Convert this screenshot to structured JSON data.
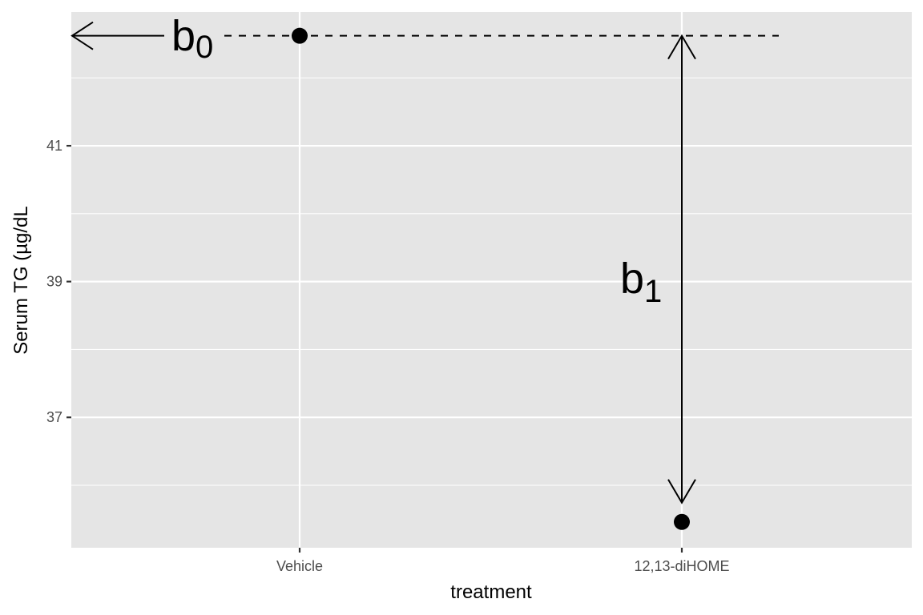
{
  "chart_data": {
    "type": "scatter",
    "xlabel": "treatment",
    "ylabel": "Serum TG (µg/dL",
    "categories": [
      "Vehicle",
      "12,13-diHOME"
    ],
    "values": [
      42.62,
      35.46
    ],
    "y_ticks": [
      37,
      39,
      41
    ],
    "ylim": [
      35.08,
      42.97
    ],
    "grid": true,
    "annotations": {
      "b0": {
        "letter": "b",
        "subscript": "0"
      },
      "b1": {
        "letter": "b",
        "subscript": "1"
      }
    }
  },
  "colors": {
    "panel": "#e5e5e5",
    "grid": "#ffffff",
    "points": "#000000",
    "annotation": "#000000"
  }
}
